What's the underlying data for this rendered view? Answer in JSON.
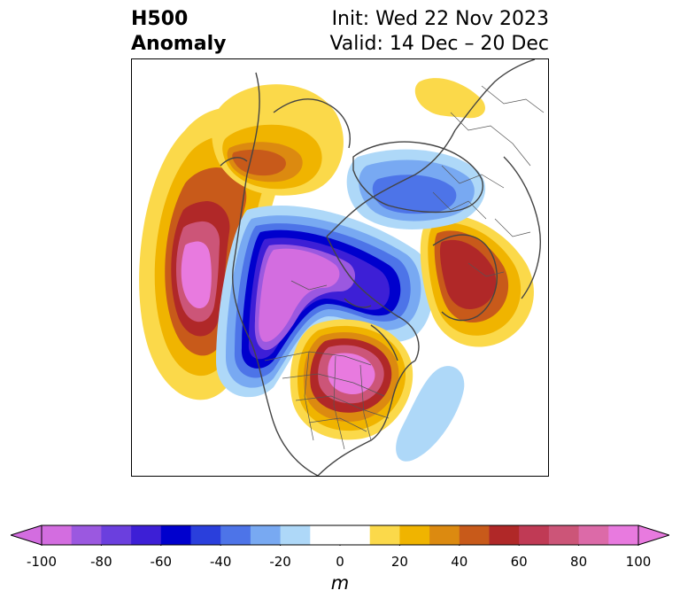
{
  "header": {
    "title_line1": "H500",
    "title_line2": "Anomaly",
    "init_text": "Init: Wed 22 Nov 2023",
    "valid_text": "Valid: 14 Dec – 20 Dec"
  },
  "colorbar": {
    "unit": "m",
    "min": -100,
    "max": 100,
    "step": 10,
    "colors": [
      "#d36de0",
      "#9b58e0",
      "#6b3fde",
      "#3d1fd6",
      "#0000cd",
      "#2a3fdc",
      "#4d74e8",
      "#78a9f2",
      "#aed8f8",
      "#ffffff",
      "#ffffff",
      "#fbd94a",
      "#f0b400",
      "#dc8a10",
      "#c85a1a",
      "#b02828",
      "#c03a55",
      "#cc5578",
      "#dc6aa8",
      "#e87adf"
    ],
    "under_color": "#d36de0",
    "over_color": "#e87adf",
    "ticks": [
      -100,
      -80,
      -60,
      -40,
      -20,
      0,
      20,
      40,
      60,
      80,
      100
    ]
  },
  "chart_data": {
    "type": "contour map",
    "field": "500 hPa geopotential height anomaly",
    "units": "m",
    "levels": [
      -100,
      -90,
      -80,
      -70,
      -60,
      -50,
      -40,
      -30,
      -20,
      -10,
      0,
      10,
      20,
      30,
      40,
      50,
      60,
      70,
      80,
      90,
      100
    ],
    "features": [
      {
        "sign": "positive",
        "region": "North Pacific / Bering Sea",
        "peak_value": 100
      },
      {
        "sign": "negative",
        "region": "Alaska, western Canada and Arctic",
        "peak_value": -100
      },
      {
        "sign": "positive",
        "region": "central and eastern United States",
        "peak_value": 100
      },
      {
        "sign": "positive",
        "region": "Scandinavia / northern Europe",
        "peak_value": 60
      },
      {
        "sign": "negative",
        "region": "Greenland and Siberia",
        "peak_value": -60
      },
      {
        "sign": "negative",
        "region": "western Atlantic",
        "peak_value": -20
      },
      {
        "sign": "positive",
        "region": "East Siberian Arctic",
        "peak_value": 20
      }
    ]
  }
}
